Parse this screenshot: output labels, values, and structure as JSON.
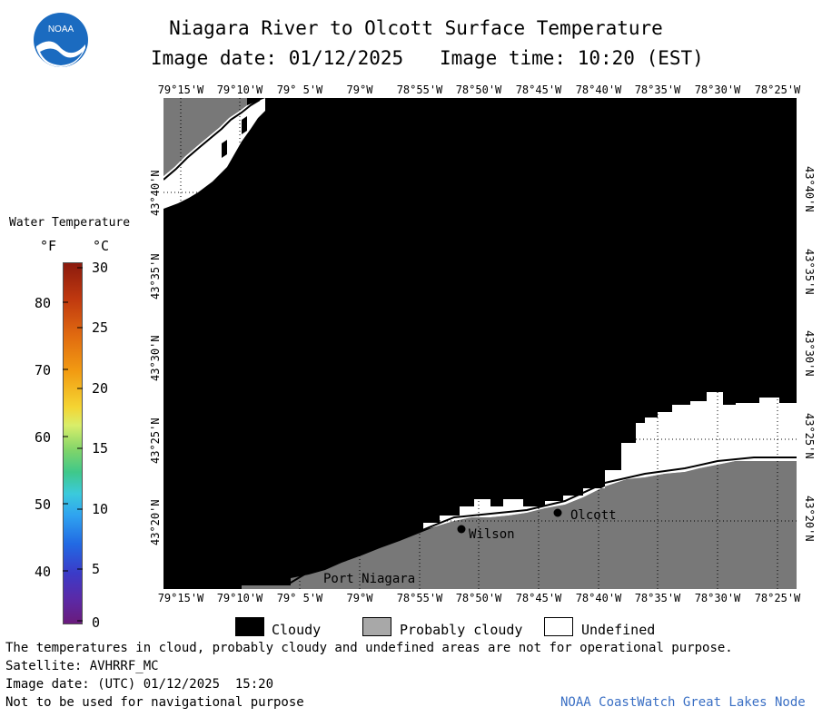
{
  "header": {
    "title": "Niagara River to Olcott Surface Temperature",
    "image_date_label": "Image date: 01/12/2025",
    "image_time_label": "Image time: 10:20 (EST)",
    "logo_text": "NOAA"
  },
  "axes": {
    "lon_ticks": [
      "79°15'W",
      "79°10'W",
      "79° 5'W",
      "79°W",
      "78°55'W",
      "78°50'W",
      "78°45'W",
      "78°40'W",
      "78°35'W",
      "78°30'W",
      "78°25'W"
    ],
    "lat_ticks": [
      "43°40'N",
      "43°35'N",
      "43°30'N",
      "43°25'N",
      "43°20'N"
    ]
  },
  "places": {
    "wilson": "Wilson",
    "olcott": "Olcott",
    "port_niagara": "Port Niagara"
  },
  "color_scale": {
    "title": "Water Temperature",
    "unit_f": "°F",
    "unit_c": "°C",
    "f_ticks": [
      "80",
      "70",
      "60",
      "50",
      "40"
    ],
    "c_ticks": [
      "30",
      "25",
      "20",
      "15",
      "10",
      "5",
      "0"
    ]
  },
  "legend": {
    "cloudy": "Cloudy",
    "probably_cloudy": "Probably cloudy",
    "undefined": "Undefined",
    "cloudy_color": "#000000",
    "probably_cloudy_color": "#787878",
    "undefined_color": "#ffffff"
  },
  "footer": {
    "line1": "The temperatures in cloud, probably cloudy and undefined areas are not for operational purpose.",
    "satellite": "Satellite: AVHRRF_MC",
    "utc_date": "Image date: (UTC) 01/12/2025  15:20",
    "nav_warning": "Not to be used for navigational purpose",
    "credit": "NOAA CoastWatch Great Lakes Node",
    "credit_color": "#3a6fc4"
  }
}
